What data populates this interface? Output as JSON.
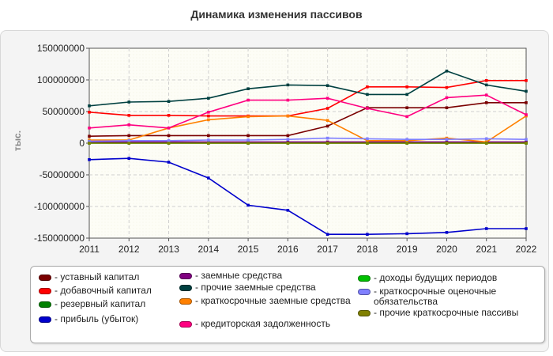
{
  "title": "Динамика изменения пассивов",
  "ylabel": "тыс.",
  "chart_data": {
    "type": "line",
    "title": "Динамика изменения пассивов",
    "ylabel": "тыс.",
    "xlabel": "",
    "x": [
      2011,
      2012,
      2013,
      2014,
      2015,
      2016,
      2017,
      2018,
      2019,
      2020,
      2021,
      2022
    ],
    "ylim": [
      -150000000,
      150000000
    ],
    "yticks": [
      150000000,
      100000000,
      50000000,
      0,
      -50000000,
      -100000000,
      -150000000
    ],
    "ytick_labels": [
      "150000000",
      "100000000",
      "50000000",
      "0",
      "-50000000",
      "-100000000",
      "-150000000"
    ],
    "grid": true,
    "legend_position": "bottom",
    "series": [
      {
        "name": "- уставный капитал",
        "color": "#7a0000",
        "values": [
          11000000,
          12000000,
          12000000,
          12000000,
          12000000,
          12000000,
          27000000,
          56000000,
          56000000,
          56000000,
          64000000,
          64000000
        ]
      },
      {
        "name": "- добавочный капитал",
        "color": "#ff0000",
        "values": [
          49000000,
          44000000,
          44000000,
          43000000,
          43000000,
          43000000,
          55000000,
          89000000,
          89000000,
          88000000,
          99000000,
          99000000
        ]
      },
      {
        "name": "- резервный капитал",
        "color": "#008000",
        "values": [
          1000000,
          1000000,
          1000000,
          1000000,
          1000000,
          1000000,
          1000000,
          1000000,
          1000000,
          1000000,
          1000000,
          1000000
        ]
      },
      {
        "name": "- прибыль (убыток)",
        "color": "#0000cc",
        "values": [
          -26000000,
          -24000000,
          -30000000,
          -55000000,
          -98000000,
          -106000000,
          -144000000,
          -144000000,
          -143000000,
          -141000000,
          -135000000,
          -135000000
        ]
      },
      {
        "name": "- заемные средства",
        "color": "#800080",
        "values": [
          2000000,
          2000000,
          2000000,
          2000000,
          2000000,
          2000000,
          2000000,
          2000000,
          2000000,
          2000000,
          2000000,
          2000000
        ]
      },
      {
        "name": "- прочие заемные средства",
        "color": "#004040",
        "values": [
          59000000,
          65000000,
          66000000,
          71000000,
          86000000,
          92000000,
          91000000,
          77000000,
          77000000,
          114000000,
          92000000,
          82000000
        ]
      },
      {
        "name": "- краткосрочные заемные средства",
        "color": "#ff8000",
        "values": [
          5000000,
          5000000,
          24000000,
          37000000,
          42000000,
          43000000,
          36000000,
          4000000,
          4000000,
          8000000,
          2000000,
          43000000
        ]
      },
      {
        "name": "- кредиторская задолженность",
        "color": "#ff0080",
        "values": [
          24000000,
          29000000,
          24000000,
          49000000,
          68000000,
          68000000,
          71000000,
          55000000,
          42000000,
          72000000,
          76000000,
          45000000
        ]
      },
      {
        "name": "- доходы будущих периодов",
        "color": "#00c000",
        "values": [
          0,
          0,
          0,
          0,
          0,
          0,
          0,
          0,
          0,
          0,
          0,
          0
        ]
      },
      {
        "name": "- краткосрочные оценочные обязательства",
        "color": "#8080ff",
        "values": [
          3000000,
          4000000,
          4000000,
          5000000,
          5000000,
          6000000,
          8000000,
          7000000,
          6000000,
          6000000,
          7000000,
          6000000
        ]
      },
      {
        "name": "- прочие краткосрочные пассивы",
        "color": "#808000",
        "values": [
          0,
          0,
          0,
          0,
          0,
          0,
          0,
          0,
          0,
          0,
          0,
          0
        ]
      }
    ]
  }
}
